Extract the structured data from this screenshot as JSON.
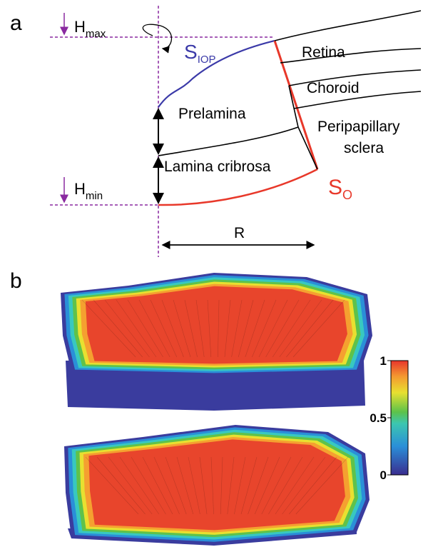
{
  "panel_a": {
    "label": "a",
    "h_max": {
      "symbol": "H",
      "subscript": "max"
    },
    "h_min": {
      "symbol": "H",
      "subscript": "min"
    },
    "s_iop": {
      "symbol": "S",
      "subscript": "IOP"
    },
    "s_o": {
      "symbol": "S",
      "subscript": "O"
    },
    "regions": {
      "retina": "Retina",
      "choroid": "Choroid",
      "prelamina": "Prelamina",
      "sclera": [
        "Peripapillary",
        "sclera"
      ],
      "lamina": "Lamina cribrosa"
    },
    "radius": "R"
  },
  "panel_b": {
    "label": "b",
    "colorbar": {
      "lim": [
        0,
        1
      ],
      "ticks": [
        0,
        0.5,
        1
      ]
    }
  }
}
